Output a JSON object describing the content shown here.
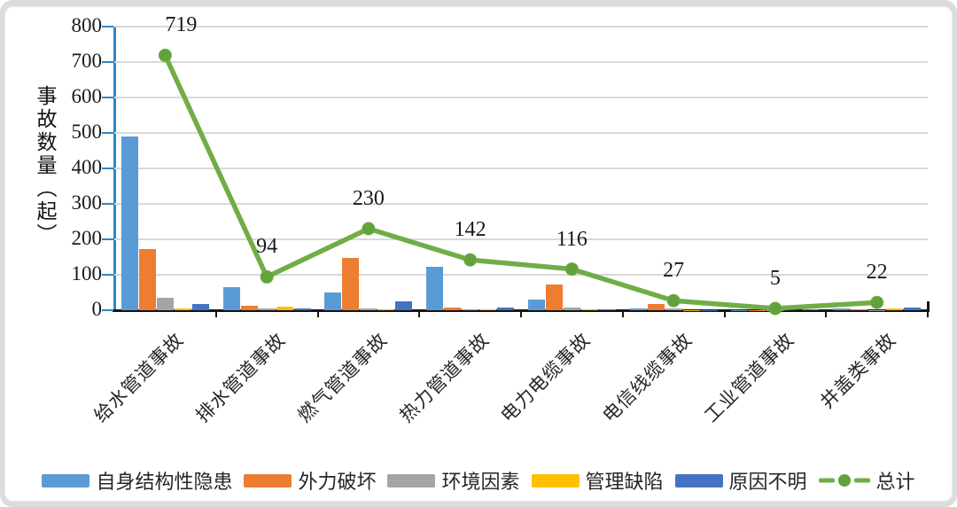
{
  "chart_data": {
    "type": "bar",
    "subtype": "grouped-bars-with-total-line",
    "title": "",
    "ylabel": "事故数量（起）",
    "xlabel": "",
    "ylim": [
      0,
      800
    ],
    "y_ticks": [
      0,
      100,
      200,
      300,
      400,
      500,
      600,
      700,
      800
    ],
    "grid": "horizontal",
    "legend_position": "bottom",
    "categories": [
      "给水管道事故",
      "排水管道事故",
      "燃气管道事故",
      "热力管道事故",
      "电力电缆事故",
      "电信线缆事故",
      "工业管道事故",
      "井盖类事故"
    ],
    "series": [
      {
        "name": "自身结构性隐患",
        "type": "bar",
        "color": "#5B9BD5",
        "values": [
          490,
          65,
          50,
          122,
          30,
          4,
          1,
          6
        ]
      },
      {
        "name": "外力破坏",
        "type": "bar",
        "color": "#ED7D31",
        "values": [
          172,
          12,
          147,
          8,
          73,
          17,
          1,
          3
        ]
      },
      {
        "name": "环境因素",
        "type": "bar",
        "color": "#A5A5A5",
        "values": [
          36,
          4,
          6,
          2,
          8,
          4,
          1,
          1
        ]
      },
      {
        "name": "管理缺陷",
        "type": "bar",
        "color": "#FFC000",
        "values": [
          4,
          9,
          3,
          2,
          2,
          1,
          0,
          5
        ]
      },
      {
        "name": "原因不明",
        "type": "bar",
        "color": "#4472C4",
        "values": [
          17,
          4,
          24,
          8,
          3,
          1,
          2,
          7
        ]
      },
      {
        "name": "总计",
        "type": "line",
        "color": "#70AD47",
        "values": [
          719,
          94,
          230,
          142,
          116,
          27,
          5,
          22
        ],
        "data_labels": [
          "719",
          "94",
          "230",
          "142",
          "116",
          "27",
          "5",
          "22"
        ]
      }
    ],
    "colors": {
      "y_axis": "#2E86C6",
      "x_axis": "#151515",
      "gridline": "#D9D9D9",
      "line": "#70AD47",
      "marker": "#61A23C",
      "text": "#1A1A1A"
    }
  }
}
